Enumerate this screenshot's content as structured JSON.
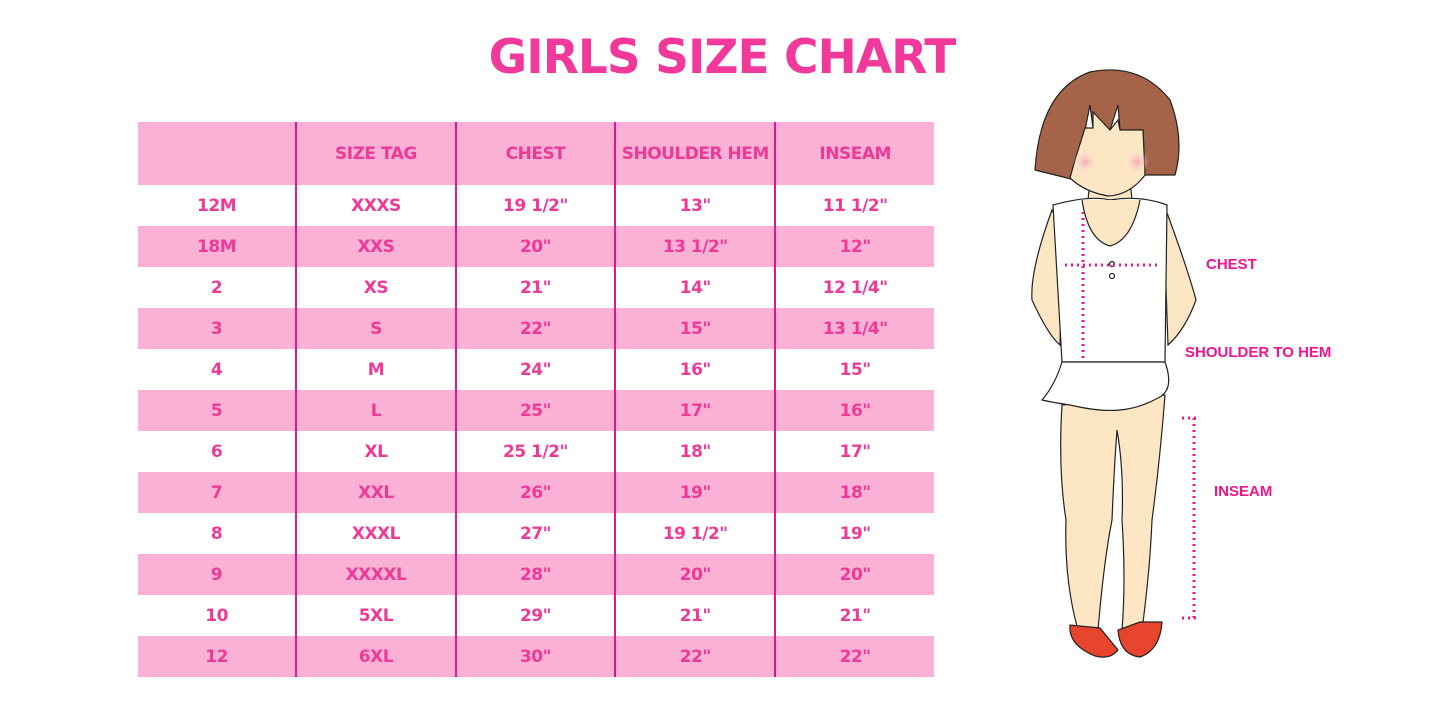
{
  "title": "GIRLS SIZE CHART",
  "table": {
    "headers": [
      "",
      "SIZE TAG",
      "CHEST",
      "SHOULDER HEM",
      "INSEAM"
    ],
    "rows": [
      [
        "12M",
        "XXXS",
        "19 1/2\"",
        "13\"",
        "11 1/2\""
      ],
      [
        "18M",
        "XXS",
        "20\"",
        "13 1/2\"",
        "12\""
      ],
      [
        "2",
        "XS",
        "21\"",
        "14\"",
        "12 1/4\""
      ],
      [
        "3",
        "S",
        "22\"",
        "15\"",
        "13 1/4\""
      ],
      [
        "4",
        "M",
        "24\"",
        "16\"",
        "15\""
      ],
      [
        "5",
        "L",
        "25\"",
        "17\"",
        "16\""
      ],
      [
        "6",
        "XL",
        "25 1/2\"",
        "18\"",
        "17\""
      ],
      [
        "7",
        "XXL",
        "26\"",
        "19\"",
        "18\""
      ],
      [
        "8",
        "XXXL",
        "27\"",
        "19 1/2\"",
        "19\""
      ],
      [
        "9",
        "XXXXL",
        "28\"",
        "20\"",
        "20\""
      ],
      [
        "10",
        "5XL",
        "29\"",
        "21\"",
        "21\""
      ],
      [
        "12",
        "6XL",
        "30\"",
        "22\"",
        "22\""
      ]
    ]
  },
  "illustration": {
    "labels": {
      "chest": "CHEST",
      "shoulder_to_hem": "SHOULDER TO HEM",
      "inseam": "INSEAM"
    }
  },
  "colors": {
    "accent": "#f0399b",
    "row_pink": "#fbb0d6",
    "divider": "#e0168a"
  }
}
